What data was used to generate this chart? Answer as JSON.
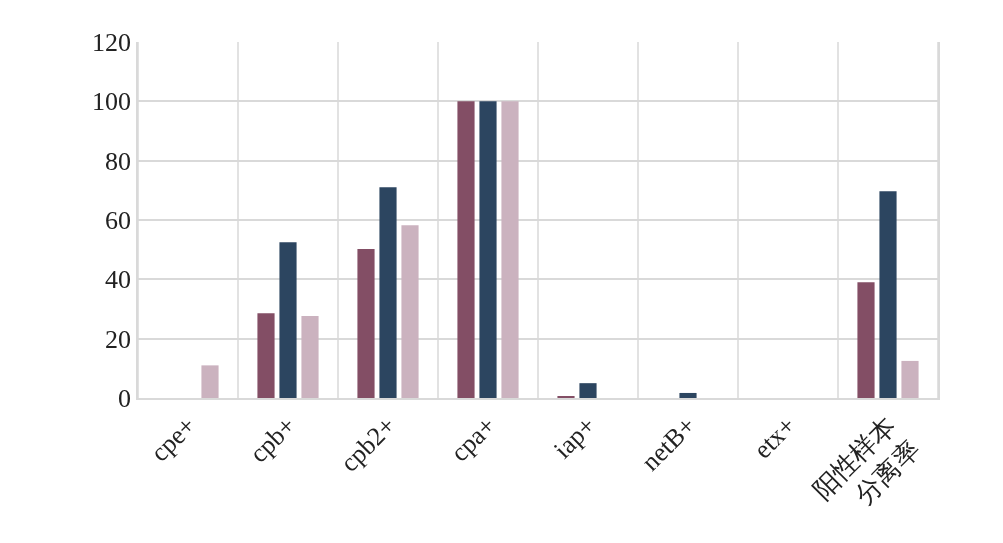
{
  "chart_data": {
    "type": "bar",
    "categories": [
      "cpe+",
      "cpb+",
      "cpb2+",
      "cpa+",
      "iap+",
      "netB+",
      "etx+",
      "阳性样本\n分离率"
    ],
    "series": [
      {
        "color": "#834e65",
        "values": [
          0,
          28.6,
          50.2,
          100,
          0.6,
          0,
          0,
          39
        ]
      },
      {
        "color": "#2c4560",
        "values": [
          0,
          52.5,
          71,
          100,
          5,
          1.7,
          0,
          69.7
        ]
      },
      {
        "color": "#cbb2bf",
        "values": [
          11,
          27.6,
          58.2,
          100,
          0,
          0,
          0,
          12.5
        ]
      }
    ],
    "ylim": [
      0,
      120
    ],
    "yticks": [
      0,
      20,
      40,
      60,
      80,
      100,
      120
    ],
    "grid": true
  }
}
